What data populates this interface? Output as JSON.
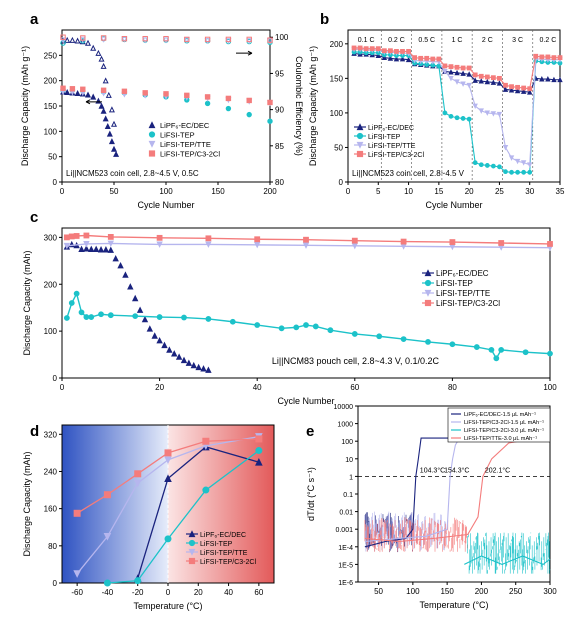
{
  "colors": {
    "navy": "#1a237e",
    "cyan": "#1cc2c9",
    "lavender": "#b6b6ee",
    "salmon": "#f47c7c"
  },
  "chart_data": [
    {
      "panel": "a",
      "type": "scatter",
      "xlabel": "Cycle Number",
      "ylabel": "Discharge Capacity (mAh g⁻¹)",
      "y2label": "Coulombic Efficiency (%)",
      "xlim": [
        0,
        200
      ],
      "ylim": [
        0,
        300
      ],
      "y2lim": [
        80,
        101
      ],
      "xticks": [
        0,
        50,
        100,
        150,
        200
      ],
      "yticks": [
        0,
        50,
        100,
        150,
        200,
        250
      ],
      "y2ticks": [
        80,
        85,
        90,
        95,
        100
      ],
      "legend": [
        "LiPF₆-EC/DEC",
        "LiFSI-TEP",
        "LiFSI-TEP/TTE",
        "LiFSI-TEP/C3-2Cl"
      ],
      "legend_position": "bottom-right",
      "annotation": "Li||NCM523 coin cell, 2.8~4.5 V, 0.5C",
      "grid": false,
      "series": [
        {
          "name": "LiPF₆-EC/DEC",
          "marker": "triangle",
          "axis": "left",
          "x": [
            1,
            5,
            10,
            15,
            20,
            25,
            30,
            35,
            38,
            40,
            42,
            44,
            46,
            48,
            50,
            52
          ],
          "y": [
            178,
            177,
            176,
            175,
            174,
            172,
            168,
            160,
            150,
            140,
            125,
            110,
            95,
            80,
            65,
            55
          ]
        },
        {
          "name": "LiFSI-TEP",
          "marker": "circle",
          "axis": "left",
          "x": [
            1,
            10,
            20,
            40,
            60,
            80,
            100,
            120,
            140,
            160,
            180,
            200
          ],
          "y": [
            181,
            181,
            180,
            178,
            176,
            172,
            168,
            162,
            155,
            145,
            133,
            120
          ]
        },
        {
          "name": "LiFSI-TEP/TTE",
          "marker": "down-triangle",
          "axis": "left",
          "x": [
            1,
            10,
            20,
            40,
            60,
            80,
            100,
            120,
            140,
            160,
            180,
            200
          ],
          "y": [
            178,
            177,
            176,
            175,
            173,
            171,
            169,
            167,
            165,
            162,
            159,
            156
          ]
        },
        {
          "name": "LiFSI-TEP/C3-2Cl",
          "marker": "square",
          "axis": "left",
          "x": [
            1,
            10,
            20,
            40,
            60,
            80,
            100,
            120,
            140,
            160,
            180,
            200
          ],
          "y": [
            185,
            184,
            183,
            181,
            179,
            176,
            174,
            171,
            168,
            165,
            161,
            157
          ]
        },
        {
          "name": "LiPF₆-EC/DEC CE",
          "marker": "triangle-open",
          "axis": "right",
          "x": [
            1,
            5,
            10,
            15,
            20,
            25,
            30,
            35,
            38,
            40,
            42,
            45,
            48,
            50
          ],
          "y": [
            99.5,
            99.6,
            99.6,
            99.5,
            99.4,
            99.2,
            98.5,
            97.8,
            97,
            96,
            94,
            92,
            90,
            88
          ]
        },
        {
          "name": "LiFSI-TEP CE",
          "marker": "circle-open",
          "axis": "right",
          "x": [
            1,
            20,
            40,
            60,
            80,
            100,
            120,
            140,
            160,
            180,
            200
          ],
          "y": [
            99.2,
            99.5,
            99.8,
            99.7,
            99.6,
            99.6,
            99.5,
            99.5,
            99.4,
            99.4,
            99.3
          ]
        },
        {
          "name": "LiFSI-TEP/TTE CE",
          "marker": "down-triangle-open",
          "axis": "right",
          "x": [
            1,
            20,
            40,
            60,
            80,
            100,
            120,
            140,
            160,
            180,
            200
          ],
          "y": [
            99.6,
            99.7,
            99.7,
            99.7,
            99.6,
            99.6,
            99.6,
            99.5,
            99.5,
            99.5,
            99.5
          ]
        },
        {
          "name": "LiFSI-TEP/C3-2Cl CE",
          "marker": "square-open",
          "axis": "right",
          "x": [
            1,
            20,
            40,
            60,
            80,
            100,
            120,
            140,
            160,
            180,
            200
          ],
          "y": [
            100,
            99.9,
            99.9,
            99.8,
            99.8,
            99.8,
            99.7,
            99.7,
            99.7,
            99.7,
            99.6
          ]
        }
      ]
    },
    {
      "panel": "b",
      "type": "line",
      "xlabel": "Cycle Number",
      "ylabel": "Discharge Capacity (mAh g⁻¹)",
      "xlim": [
        0,
        35
      ],
      "ylim": [
        0,
        220
      ],
      "xticks": [
        0,
        5,
        10,
        15,
        20,
        25,
        30,
        35
      ],
      "yticks": [
        0,
        50,
        100,
        150,
        200
      ],
      "rate_labels": [
        "0.1 C",
        "0.2 C",
        "0.5 C",
        "1 C",
        "2 C",
        "3 C",
        "0.2 C"
      ],
      "legend": [
        "LiPF₆-EC/DEC",
        "LiFSI-TEP",
        "LiFSI-TEP/TTE",
        "LiFSI-TEP/C3-2Cl"
      ],
      "legend_position": "bottom-left",
      "annotation": "Li||NCM523 coin cell, 2.8~4.5 V",
      "grid": false,
      "series": [
        {
          "name": "LiPF₆-EC/DEC",
          "x": [
            1,
            2,
            3,
            4,
            5,
            6,
            7,
            8,
            9,
            10,
            11,
            12,
            13,
            14,
            15,
            16,
            17,
            18,
            19,
            20,
            21,
            22,
            23,
            24,
            25,
            26,
            27,
            28,
            29,
            30,
            31,
            32,
            33,
            34,
            35
          ],
          "y": [
            186,
            185,
            185,
            184,
            183,
            180,
            179,
            178,
            178,
            177,
            171,
            170,
            169,
            168,
            168,
            160,
            159,
            158,
            157,
            156,
            147,
            146,
            145,
            144,
            143,
            134,
            133,
            132,
            131,
            130,
            150,
            149,
            149,
            148,
            148
          ]
        },
        {
          "name": "LiFSI-TEP",
          "x": [
            1,
            2,
            3,
            4,
            5,
            6,
            7,
            8,
            9,
            10,
            11,
            12,
            13,
            14,
            15,
            16,
            17,
            18,
            19,
            20,
            21,
            22,
            23,
            24,
            25,
            26,
            27,
            28,
            29,
            30,
            31,
            32,
            33,
            34,
            35
          ],
          "y": [
            188,
            188,
            187,
            187,
            187,
            184,
            184,
            183,
            183,
            183,
            172,
            171,
            170,
            169,
            168,
            100,
            95,
            93,
            92,
            91,
            28,
            25,
            24,
            23,
            22,
            15,
            14,
            14,
            14,
            14,
            175,
            174,
            173,
            173,
            172
          ]
        },
        {
          "name": "LiFSI-TEP/TTE",
          "x": [
            1,
            2,
            3,
            4,
            5,
            6,
            7,
            8,
            9,
            10,
            11,
            12,
            13,
            14,
            15,
            16,
            17,
            18,
            19,
            20,
            21,
            22,
            23,
            24,
            25,
            26,
            27,
            28,
            29,
            30,
            31,
            32,
            33,
            34,
            35
          ],
          "y": [
            192,
            192,
            191,
            191,
            191,
            188,
            188,
            187,
            187,
            186,
            176,
            175,
            175,
            174,
            174,
            160,
            150,
            145,
            142,
            140,
            110,
            103,
            100,
            99,
            98,
            50,
            35,
            30,
            28,
            25,
            178,
            178,
            177,
            177,
            177
          ]
        },
        {
          "name": "LiFSI-TEP/C3-2Cl",
          "x": [
            1,
            2,
            3,
            4,
            5,
            6,
            7,
            8,
            9,
            10,
            11,
            12,
            13,
            14,
            15,
            16,
            17,
            18,
            19,
            20,
            21,
            22,
            23,
            24,
            25,
            26,
            27,
            28,
            29,
            30,
            31,
            32,
            33,
            34,
            35
          ],
          "y": [
            194,
            194,
            193,
            193,
            193,
            190,
            190,
            189,
            189,
            189,
            180,
            179,
            179,
            178,
            178,
            168,
            167,
            166,
            165,
            165,
            155,
            153,
            152,
            151,
            150,
            140,
            138,
            137,
            136,
            135,
            182,
            181,
            181,
            180,
            180
          ]
        }
      ]
    },
    {
      "panel": "c",
      "type": "scatter",
      "xlabel": "Cycle Number",
      "ylabel": "Discharge Capacity (mAh)",
      "xlim": [
        0,
        100
      ],
      "ylim": [
        0,
        320
      ],
      "xticks": [
        0,
        20,
        40,
        60,
        80,
        100
      ],
      "yticks": [
        0,
        100,
        200,
        300
      ],
      "legend": [
        "LiPF₆-EC/DEC",
        "LiFSI-TEP",
        "LiFSI-TEP/TTE",
        "LiFSI-TEP/C3-2Cl"
      ],
      "legend_position": "right",
      "annotation": "Li||NCM83 pouch cell, 2.8~4.3 V, 0.1/0.2C",
      "grid": false,
      "series": [
        {
          "name": "LiPF₆-EC/DEC",
          "x": [
            1,
            2,
            3,
            4,
            5,
            6,
            7,
            8,
            9,
            10,
            11,
            12,
            13,
            14,
            15,
            16,
            17,
            18,
            19,
            20,
            21,
            22,
            23,
            24,
            25,
            26,
            27,
            28,
            29,
            30
          ],
          "y": [
            280,
            285,
            283,
            275,
            276,
            275,
            275,
            274,
            274,
            273,
            255,
            240,
            220,
            195,
            170,
            145,
            125,
            105,
            90,
            80,
            70,
            60,
            52,
            45,
            38,
            32,
            27,
            23,
            20,
            17
          ]
        },
        {
          "name": "LiFSI-TEP",
          "x": [
            1,
            2,
            3,
            4,
            5,
            6,
            8,
            10,
            15,
            20,
            25,
            30,
            35,
            40,
            45,
            48,
            50,
            52,
            55,
            60,
            65,
            70,
            75,
            80,
            85,
            88,
            89,
            90,
            95,
            100
          ],
          "y": [
            128,
            160,
            180,
            140,
            130,
            130,
            136,
            134,
            132,
            130,
            129,
            126,
            120,
            113,
            106,
            108,
            113,
            110,
            102,
            94,
            89,
            83,
            77,
            72,
            66,
            60,
            42,
            60,
            55,
            52
          ]
        },
        {
          "name": "LiFSI-TEP/TTE",
          "x": [
            1,
            5,
            10,
            20,
            30,
            40,
            50,
            60,
            70,
            80,
            90,
            100
          ],
          "y": [
            282,
            286,
            287,
            285,
            285,
            284,
            283,
            282,
            281,
            280,
            279,
            278
          ]
        },
        {
          "name": "LiFSI-TEP/C3-2Cl",
          "x": [
            1,
            2,
            3,
            5,
            10,
            20,
            30,
            40,
            50,
            60,
            70,
            80,
            90,
            100
          ],
          "y": [
            300,
            302,
            303,
            304,
            301,
            299,
            298,
            296,
            295,
            293,
            291,
            290,
            288,
            286
          ]
        }
      ]
    },
    {
      "panel": "d",
      "type": "line",
      "xlabel": "Temperature (°C)",
      "ylabel": "Discharge Capacity (mAh)",
      "xlim": [
        -70,
        70
      ],
      "ylim": [
        0,
        340
      ],
      "xticks": [
        -60,
        -40,
        -20,
        0,
        20,
        40,
        60
      ],
      "yticks": [
        0,
        80,
        160,
        240,
        320
      ],
      "legend": [
        "LiPF₆-EC/DEC",
        "LiFSI-TEP",
        "LiFSI-TEP/TTE",
        "LiFSI-TEP/C3-2Cl"
      ],
      "legend_position": "bottom-right",
      "grid": false,
      "series": [
        {
          "name": "LiPF₆-EC/DEC",
          "x": [
            -20,
            0,
            25,
            60
          ],
          "y": [
            10,
            225,
            293,
            260
          ]
        },
        {
          "name": "LiFSI-TEP",
          "x": [
            -40,
            -20,
            0,
            25,
            60
          ],
          "y": [
            0,
            5,
            95,
            200,
            285
          ]
        },
        {
          "name": "LiFSI-TEP/TTE",
          "x": [
            -60,
            -40,
            -20,
            0,
            25,
            60
          ],
          "y": [
            20,
            100,
            215,
            265,
            295,
            315
          ]
        },
        {
          "name": "LiFSI-TEP/C3-2Cl",
          "x": [
            -60,
            -40,
            -20,
            0,
            25,
            60
          ],
          "y": [
            150,
            190,
            235,
            280,
            305,
            310
          ]
        }
      ]
    },
    {
      "panel": "e",
      "type": "line",
      "xlabel": "Temperature (°C)",
      "ylabel": "dT/dt (°C s⁻¹)",
      "xlim": [
        20,
        300
      ],
      "ylim_log10": [
        -6,
        4
      ],
      "yscale": "log",
      "xticks": [
        50,
        100,
        150,
        200,
        250,
        300
      ],
      "ytick_labels": [
        "1E-6",
        "1E-5",
        "1E-4",
        "0.001",
        "0.01",
        "0.1",
        "1",
        "10",
        "100",
        "1000",
        "10000"
      ],
      "legend": [
        "LiPF₆-EC/DEC-1.5 μL mAh⁻¹",
        "LiFSI-TEP/C3-2Cl-1.5 μL mAh⁻¹",
        "LiFSI-TEP/C3-2Cl-3.0 μL mAh⁻¹",
        "LiFSI-TEP/TTE-3.0 μL mAh⁻¹"
      ],
      "legend_position": "top",
      "annotations": [
        "104.3°C",
        "154.3°C",
        "202.1°C"
      ],
      "reference_line": 1,
      "grid": false,
      "series": [
        {
          "name": "LiPF₆-EC/DEC-1.5 μL mAh⁻¹",
          "x": [
            30,
            60,
            90,
            100,
            104.3,
            108,
            112,
            130,
            180
          ],
          "y": [
            0.0001,
            0.0002,
            0.0003,
            0.001,
            1,
            10,
            150,
            150,
            150
          ]
        },
        {
          "name": "LiFSI-TEP/C3-2Cl-1.5 μL mAh⁻¹",
          "x": [
            30,
            80,
            120,
            150,
            154.3,
            158,
            162,
            168,
            175
          ],
          "y": [
            0.0002,
            0.0003,
            0.0004,
            0.001,
            1,
            10,
            60,
            150,
            150
          ]
        },
        {
          "name": "LiFSI-TEP/C3-2Cl-3.0 μL mAh⁻¹",
          "x": [
            175,
            200,
            230,
            260,
            290,
            300
          ],
          "y": [
            1e-05,
            3e-05,
            1e-05,
            3e-05,
            1e-05,
            2e-05
          ]
        },
        {
          "name": "LiFSI-TEP/TTE-3.0 μL mAh⁻¹",
          "x": [
            30,
            80,
            130,
            180,
            195,
            202.1,
            215,
            240,
            280,
            300
          ],
          "y": [
            0.0003,
            0.0002,
            0.0003,
            0.0005,
            0.005,
            1,
            10,
            80,
            150,
            150
          ]
        }
      ]
    }
  ]
}
